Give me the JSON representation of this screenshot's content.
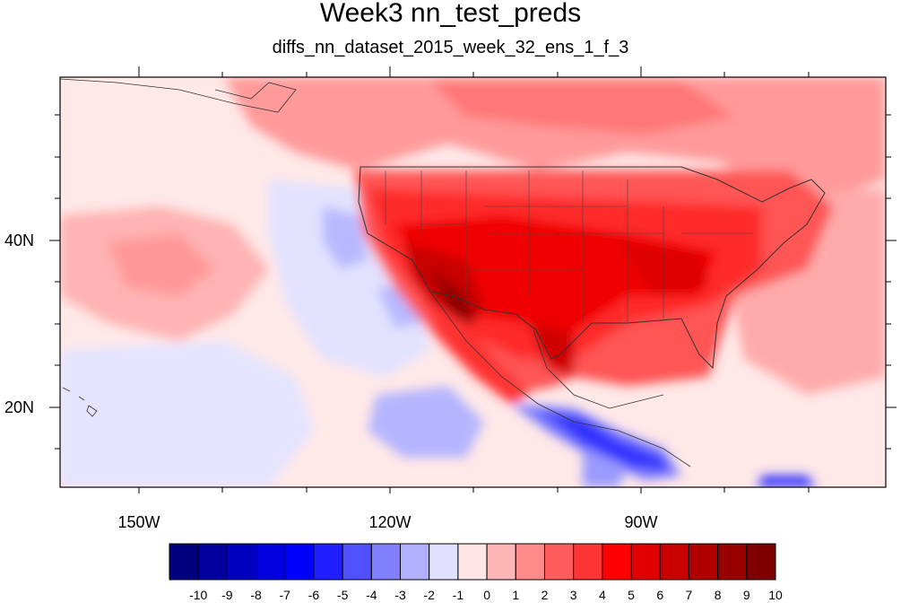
{
  "map": {
    "title": "Week3 nn_test_preds",
    "subtitle": "diffs_nn_dataset_2015_week_32_ens_1_f_3",
    "lat_ticks": [
      "40N",
      "20N"
    ],
    "lon_ticks": [
      "150W",
      "120W",
      "90W"
    ]
  },
  "colorbar": {
    "labels": [
      "-10",
      "-9",
      "-8",
      "-7",
      "-6",
      "-5",
      "-4",
      "-3",
      "-2",
      "-1",
      "0",
      "1",
      "2",
      "3",
      "4",
      "5",
      "6",
      "7",
      "8",
      "9",
      "10"
    ],
    "colors": [
      "#00007f",
      "#00009f",
      "#0000bf",
      "#0000df",
      "#0000ff",
      "#1f1fff",
      "#5050ff",
      "#8080ff",
      "#b0b0ff",
      "#e0e0ff",
      "#ffe6e6",
      "#ffb6b6",
      "#ff8a8a",
      "#ff5d5d",
      "#ff3535",
      "#ff0000",
      "#e00000",
      "#c80000",
      "#b00000",
      "#980000",
      "#7f0000"
    ]
  }
}
